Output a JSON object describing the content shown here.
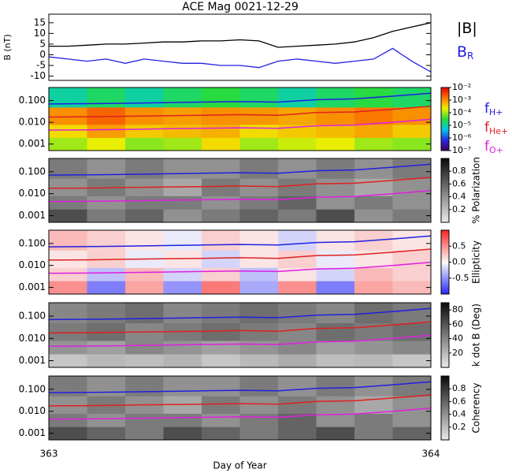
{
  "chart_data": [
    {
      "type": "line",
      "title": "ACE Mag 0021-12-29",
      "ylabel": "B (nT)",
      "xlim": [
        363,
        364
      ],
      "ylim": [
        -12,
        19
      ],
      "yticks": [
        15,
        10,
        5,
        0,
        -5,
        -10
      ],
      "x": [
        363,
        363.05,
        363.1,
        363.15,
        363.2,
        363.25,
        363.3,
        363.35,
        363.4,
        363.45,
        363.5,
        363.55,
        363.6,
        363.65,
        363.7,
        363.75,
        363.8,
        363.85,
        363.9,
        363.95,
        364
      ],
      "series": [
        {
          "name": "|B|",
          "color": "#000000",
          "values": [
            4,
            4,
            4.5,
            5,
            5,
            5.5,
            6,
            6,
            6.5,
            6.5,
            7,
            6.5,
            3.5,
            4,
            4.5,
            5,
            6,
            8,
            11,
            13,
            15
          ]
        },
        {
          "name": "B_R",
          "color": "#2020e0",
          "values": [
            -1,
            -2,
            -3,
            -2,
            -4,
            -2,
            -3,
            -4,
            -4,
            -5,
            -5,
            -6,
            -3,
            -2,
            -3,
            -4,
            -3,
            -2,
            3,
            -3,
            -8
          ]
        }
      ]
    },
    {
      "type": "heatmap",
      "colormap": "rainbow",
      "log_y": true,
      "xlim": [
        363,
        364
      ],
      "ylim": [
        0.0005,
        0.4
      ],
      "yticks": [
        {
          "value": 0.1,
          "label": "0.100"
        },
        {
          "value": 0.01,
          "label": "0.010"
        },
        {
          "value": 0.001,
          "label": "0.001"
        }
      ],
      "xbins": [
        363,
        363.1,
        363.2,
        363.3,
        363.4,
        363.5,
        363.6,
        363.7,
        363.8,
        363.9,
        364
      ],
      "ybins": [
        0.0005,
        0.002,
        0.008,
        0.05,
        0.4
      ],
      "z": [
        [
          0.0001,
          0.0002,
          8e-05,
          0.0001,
          0.0003,
          0.0001,
          0.00015,
          0.0002,
          0.0001,
          8e-05
        ],
        [
          0.0003,
          0.0008,
          0.0004,
          0.0005,
          0.0006,
          0.0003,
          0.0004,
          0.0005,
          0.0007,
          0.0004
        ],
        [
          0.001,
          0.002,
          0.001,
          0.0008,
          0.001,
          0.0009,
          0.0007,
          0.001,
          0.0015,
          0.001
        ],
        [
          1e-05,
          2e-05,
          1e-05,
          2e-05,
          3e-05,
          2e-05,
          1e-05,
          2e-05,
          3e-05,
          2e-05
        ]
      ],
      "colorbar": {
        "log": true,
        "lim": [
          1e-07,
          0.01
        ],
        "ticks": [
          {
            "value": 0.01,
            "label": "10⁻²"
          },
          {
            "value": 0.001,
            "label": "10⁻³"
          },
          {
            "value": 0.0001,
            "label": "10⁻⁴"
          },
          {
            "value": 1e-05,
            "label": "10⁻⁵"
          },
          {
            "value": 1e-06,
            "label": "10⁻⁶"
          },
          {
            "value": 1e-07,
            "label": "10⁻⁷"
          }
        ]
      },
      "x": [
        363,
        363.1,
        363.2,
        363.3,
        363.4,
        363.5,
        363.6,
        363.7,
        363.8,
        363.9,
        364
      ],
      "series": [
        {
          "name": "f_H+",
          "color": "#2020e0",
          "values": [
            0.07,
            0.072,
            0.075,
            0.08,
            0.085,
            0.09,
            0.085,
            0.11,
            0.12,
            0.16,
            0.22
          ]
        },
        {
          "name": "f_He+",
          "color": "#e02020",
          "values": [
            0.0175,
            0.018,
            0.019,
            0.02,
            0.021,
            0.0225,
            0.021,
            0.028,
            0.03,
            0.04,
            0.055
          ]
        },
        {
          "name": "f_O+",
          "color": "#e020e0",
          "values": [
            0.0044,
            0.0045,
            0.0047,
            0.005,
            0.0053,
            0.0056,
            0.0053,
            0.0069,
            0.0075,
            0.01,
            0.0138
          ]
        }
      ]
    },
    {
      "type": "heatmap",
      "colormap": "gray",
      "log_y": true,
      "xlim": [
        363,
        364
      ],
      "ylim": [
        0.0005,
        0.4
      ],
      "yticks": [
        {
          "value": 0.1,
          "label": "0.100"
        },
        {
          "value": 0.01,
          "label": "0.010"
        },
        {
          "value": 0.001,
          "label": "0.001"
        }
      ],
      "xbins": [
        363,
        363.1,
        363.2,
        363.3,
        363.4,
        363.5,
        363.6,
        363.7,
        363.8,
        363.9,
        364
      ],
      "ybins": [
        0.0005,
        0.002,
        0.008,
        0.05,
        0.4
      ],
      "z": [
        [
          0.7,
          0.5,
          0.6,
          0.4,
          0.5,
          0.6,
          0.5,
          0.7,
          0.4,
          0.5
        ],
        [
          0.5,
          0.4,
          0.5,
          0.5,
          0.4,
          0.5,
          0.6,
          0.4,
          0.5,
          0.4
        ],
        [
          0.4,
          0.5,
          0.4,
          0.3,
          0.5,
          0.4,
          0.5,
          0.4,
          0.3,
          0.4
        ],
        [
          0.5,
          0.4,
          0.5,
          0.4,
          0.4,
          0.5,
          0.4,
          0.5,
          0.4,
          0.5
        ]
      ],
      "colorbar": {
        "label": "% Polarization",
        "lim": [
          0,
          1
        ],
        "ticks": [
          0.8,
          0.6,
          0.4,
          0.2
        ]
      },
      "x": [
        363,
        363.1,
        363.2,
        363.3,
        363.4,
        363.5,
        363.6,
        363.7,
        363.8,
        363.9,
        364
      ],
      "series": [
        {
          "color": "#2020e0",
          "values": [
            0.07,
            0.072,
            0.075,
            0.08,
            0.085,
            0.09,
            0.085,
            0.11,
            0.12,
            0.16,
            0.22
          ]
        },
        {
          "color": "#e02020",
          "values": [
            0.0175,
            0.018,
            0.019,
            0.02,
            0.021,
            0.0225,
            0.021,
            0.028,
            0.03,
            0.04,
            0.055
          ]
        },
        {
          "color": "#e020e0",
          "values": [
            0.0044,
            0.0045,
            0.0047,
            0.005,
            0.0053,
            0.0056,
            0.0053,
            0.0069,
            0.0075,
            0.01,
            0.0138
          ]
        }
      ]
    },
    {
      "type": "heatmap",
      "colormap": "redblue",
      "log_y": true,
      "xlim": [
        363,
        364
      ],
      "ylim": [
        0.0005,
        0.4
      ],
      "yticks": [
        {
          "value": 0.1,
          "label": "0.100"
        },
        {
          "value": 0.01,
          "label": "0.010"
        },
        {
          "value": 0.001,
          "label": "0.001"
        }
      ],
      "xbins": [
        363,
        363.1,
        363.2,
        363.3,
        363.4,
        363.5,
        363.6,
        363.7,
        363.8,
        363.9,
        364
      ],
      "ybins": [
        0.0005,
        0.002,
        0.008,
        0.05,
        0.4
      ],
      "z": [
        [
          0.5,
          -0.6,
          0.4,
          -0.5,
          0.6,
          -0.4,
          0.5,
          -0.6,
          0.4,
          0.3
        ],
        [
          0.2,
          -0.3,
          0.3,
          -0.2,
          0.2,
          -0.3,
          0.1,
          -0.2,
          0.3,
          0.2
        ],
        [
          0.1,
          0.2,
          -0.1,
          0.1,
          -0.2,
          0.1,
          0.2,
          -0.1,
          0.1,
          0.2
        ],
        [
          0.3,
          0.2,
          0.1,
          -0.1,
          0.2,
          0.1,
          -0.2,
          0.1,
          0.2,
          0.1
        ]
      ],
      "colorbar": {
        "label": "Ellipticity",
        "lim": [
          -1,
          1
        ],
        "ticks": [
          0.5,
          {
            "value": 0,
            "label": "0.0"
          },
          -0.5
        ]
      },
      "x": [
        363,
        363.1,
        363.2,
        363.3,
        363.4,
        363.5,
        363.6,
        363.7,
        363.8,
        363.9,
        364
      ],
      "series": [
        {
          "color": "#2020e0",
          "values": [
            0.07,
            0.072,
            0.075,
            0.08,
            0.085,
            0.09,
            0.085,
            0.11,
            0.12,
            0.16,
            0.22
          ]
        },
        {
          "color": "#e02020",
          "values": [
            0.0175,
            0.018,
            0.019,
            0.02,
            0.021,
            0.0225,
            0.021,
            0.028,
            0.03,
            0.04,
            0.055
          ]
        },
        {
          "color": "#e020e0",
          "values": [
            0.0044,
            0.0045,
            0.0047,
            0.005,
            0.0053,
            0.0056,
            0.0053,
            0.0069,
            0.0075,
            0.01,
            0.0138
          ]
        }
      ]
    },
    {
      "type": "heatmap",
      "colormap": "gray",
      "log_y": true,
      "xlim": [
        363,
        364
      ],
      "ylim": [
        0.0005,
        0.4
      ],
      "yticks": [
        {
          "value": 0.1,
          "label": "0.100"
        },
        {
          "value": 0.01,
          "label": "0.010"
        },
        {
          "value": 0.001,
          "label": "0.001"
        }
      ],
      "xbins": [
        363,
        363.1,
        363.2,
        363.3,
        363.4,
        363.5,
        363.6,
        363.7,
        363.8,
        363.9,
        364
      ],
      "ybins": [
        0.0005,
        0.002,
        0.008,
        0.05,
        0.4
      ],
      "z": [
        [
          15,
          20,
          18,
          22,
          15,
          20,
          25,
          18,
          20,
          15
        ],
        [
          35,
          30,
          40,
          35,
          30,
          35,
          40,
          30,
          35,
          40
        ],
        [
          45,
          50,
          40,
          45,
          50,
          45,
          40,
          50,
          45,
          50
        ],
        [
          40,
          45,
          50,
          40,
          45,
          50,
          45,
          40,
          50,
          45
        ]
      ],
      "colorbar": {
        "label": "k dot B (Deg)",
        "lim": [
          0,
          90
        ],
        "ticks": [
          80,
          60,
          40,
          20
        ]
      },
      "x": [
        363,
        363.1,
        363.2,
        363.3,
        363.4,
        363.5,
        363.6,
        363.7,
        363.8,
        363.9,
        364
      ],
      "series": [
        {
          "color": "#2020e0",
          "values": [
            0.07,
            0.072,
            0.075,
            0.08,
            0.085,
            0.09,
            0.085,
            0.11,
            0.12,
            0.16,
            0.22
          ]
        },
        {
          "color": "#e02020",
          "values": [
            0.0175,
            0.018,
            0.019,
            0.02,
            0.021,
            0.0225,
            0.021,
            0.028,
            0.03,
            0.04,
            0.055
          ]
        },
        {
          "color": "#e020e0",
          "values": [
            0.0044,
            0.0045,
            0.0047,
            0.005,
            0.0053,
            0.0056,
            0.0053,
            0.0069,
            0.0075,
            0.01,
            0.0138
          ]
        }
      ]
    },
    {
      "type": "heatmap",
      "colormap": "gray",
      "log_y": true,
      "xlim": [
        363,
        364
      ],
      "ylim": [
        0.0005,
        0.4
      ],
      "yticks": [
        {
          "value": 0.1,
          "label": "0.100"
        },
        {
          "value": 0.01,
          "label": "0.010"
        },
        {
          "value": 0.001,
          "label": "0.001"
        }
      ],
      "xbins": [
        363,
        363.1,
        363.2,
        363.3,
        363.4,
        363.5,
        363.6,
        363.7,
        363.8,
        363.9,
        364
      ],
      "ybins": [
        0.0005,
        0.002,
        0.008,
        0.05,
        0.4
      ],
      "z": [
        [
          0.7,
          0.6,
          0.5,
          0.7,
          0.6,
          0.5,
          0.6,
          0.7,
          0.5,
          0.6
        ],
        [
          0.5,
          0.4,
          0.5,
          0.5,
          0.4,
          0.5,
          0.6,
          0.4,
          0.5,
          0.4
        ],
        [
          0.4,
          0.5,
          0.4,
          0.3,
          0.5,
          0.4,
          0.5,
          0.4,
          0.3,
          0.4
        ],
        [
          0.5,
          0.4,
          0.5,
          0.4,
          0.4,
          0.5,
          0.4,
          0.5,
          0.4,
          0.5
        ]
      ],
      "colorbar": {
        "label": "Coherency",
        "lim": [
          0,
          1
        ],
        "ticks": [
          0.8,
          0.6,
          0.4,
          0.2
        ]
      },
      "x": [
        363,
        363.1,
        363.2,
        363.3,
        363.4,
        363.5,
        363.6,
        363.7,
        363.8,
        363.9,
        364
      ],
      "series": [
        {
          "color": "#2020e0",
          "values": [
            0.07,
            0.072,
            0.075,
            0.08,
            0.085,
            0.09,
            0.085,
            0.11,
            0.12,
            0.16,
            0.22
          ]
        },
        {
          "color": "#e02020",
          "values": [
            0.0175,
            0.018,
            0.019,
            0.02,
            0.021,
            0.0225,
            0.021,
            0.028,
            0.03,
            0.04,
            0.055
          ]
        },
        {
          "color": "#e020e0",
          "values": [
            0.0044,
            0.0045,
            0.0047,
            0.005,
            0.0053,
            0.0056,
            0.0053,
            0.0069,
            0.0075,
            0.01,
            0.0138
          ]
        }
      ],
      "xlabel": "Day of Year",
      "xticks": [
        363,
        364
      ]
    }
  ]
}
